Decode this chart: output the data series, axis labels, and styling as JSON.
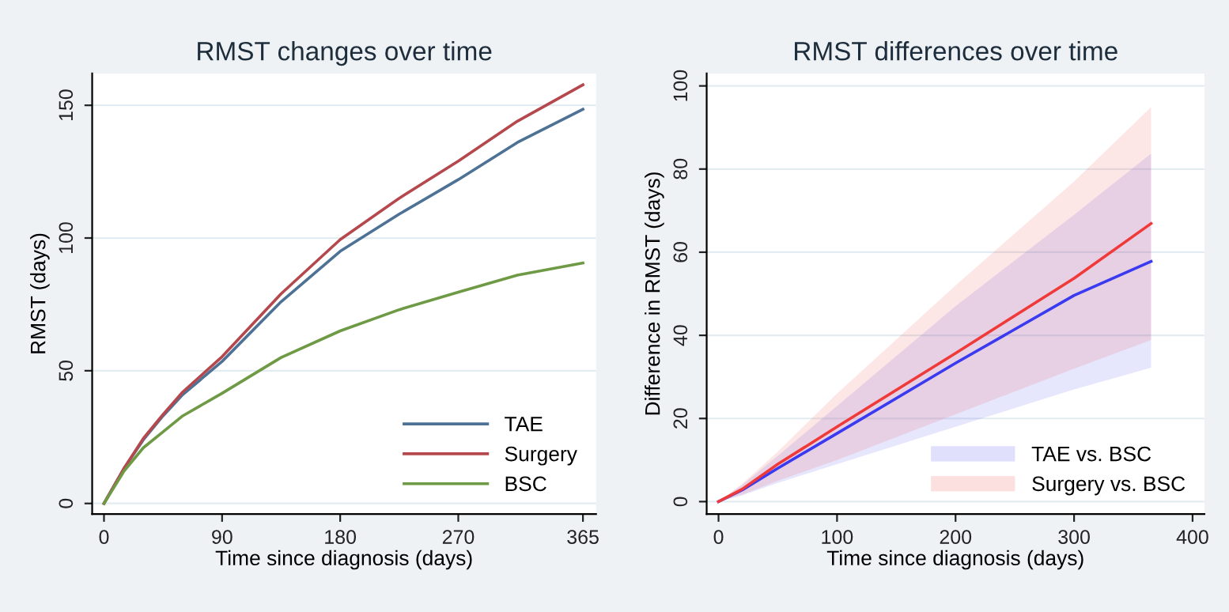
{
  "chart_data": [
    {
      "type": "line",
      "title": "RMST changes over time",
      "xlabel": "Time since diagnosis (days)",
      "ylabel": "RMST (days)",
      "xlim": [
        -9,
        375
      ],
      "ylim": [
        -4,
        162
      ],
      "xticks": [
        0,
        90,
        180,
        270,
        365
      ],
      "yticks": [
        0,
        50,
        100,
        150
      ],
      "grid": "y",
      "legend": "bottom right",
      "series": [
        {
          "name": "TAE",
          "color": "#4e7296",
          "x": [
            0,
            15,
            30,
            45,
            60,
            90,
            135,
            180,
            225,
            270,
            315,
            365
          ],
          "values": [
            0,
            13,
            24,
            33,
            41,
            53.5,
            76,
            95,
            109,
            122,
            136,
            148.5
          ]
        },
        {
          "name": "Surgery",
          "color": "#b5484d",
          "x": [
            0,
            15,
            30,
            45,
            60,
            90,
            135,
            180,
            225,
            270,
            315,
            365
          ],
          "values": [
            0,
            13,
            24.5,
            33.5,
            42,
            55.3,
            79,
            99.4,
            115,
            129,
            144,
            157.7
          ]
        },
        {
          "name": "BSC",
          "color": "#6f9a45",
          "x": [
            0,
            15,
            30,
            45,
            60,
            90,
            135,
            180,
            225,
            270,
            315,
            365
          ],
          "values": [
            0,
            12,
            21,
            27,
            33,
            41.5,
            55,
            65,
            73,
            79.6,
            86,
            90.6
          ]
        }
      ]
    },
    {
      "type": "line",
      "title": "RMST differences over time",
      "xlabel": "Time since diagnosis (days)",
      "ylabel": "Difference in RMST (days)",
      "xlim": [
        -10,
        410
      ],
      "ylim": [
        -3,
        103
      ],
      "xticks": [
        0,
        100,
        200,
        300,
        400
      ],
      "yticks": [
        0,
        20,
        40,
        60,
        80,
        100
      ],
      "grid": "y",
      "legend": "bottom right",
      "series": [
        {
          "name": "TAE vs. BSC",
          "color": "#3a3af0",
          "x": [
            0,
            20,
            50,
            100,
            200,
            300,
            365
          ],
          "values": [
            0,
            2.8,
            8,
            16.4,
            33.3,
            49.6,
            57.8
          ],
          "lower": [
            0,
            1.5,
            4.5,
            9,
            18,
            27,
            32.2
          ],
          "upper": [
            0,
            4,
            11,
            23,
            47,
            69,
            83.7
          ]
        },
        {
          "name": "Surgery vs. BSC",
          "color": "#f03a3a",
          "x": [
            0,
            20,
            50,
            100,
            200,
            300,
            365
          ],
          "values": [
            0,
            3,
            9,
            18,
            35.7,
            53.7,
            66.9
          ],
          "lower": [
            0,
            1.7,
            5,
            10,
            21,
            32,
            38.9
          ],
          "upper": [
            0,
            4.3,
            12,
            26,
            52,
            77,
            94.9
          ]
        }
      ]
    }
  ]
}
